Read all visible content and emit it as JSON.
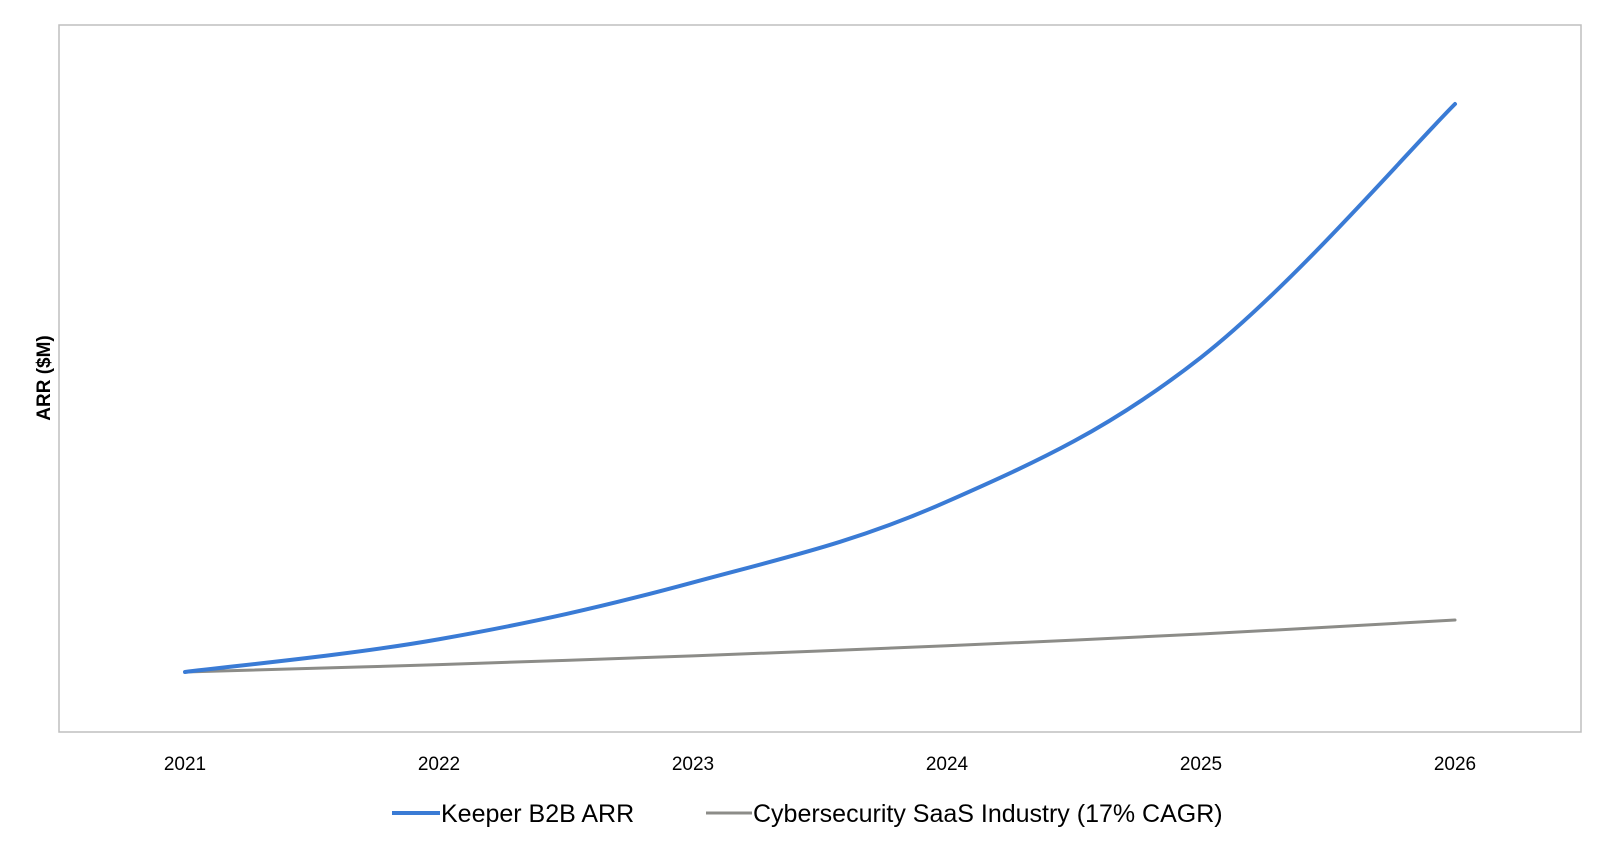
{
  "chart_data": {
    "type": "line",
    "title": "",
    "xlabel": "",
    "ylabel": "ARR ($M)",
    "x": [
      "2021",
      "2022",
      "2023",
      "2024",
      "2025",
      "2026"
    ],
    "y_ticks_shown": false,
    "grid": false,
    "legend_position": "bottom",
    "series": [
      {
        "name": "Keeper B2B ARR",
        "color": "#3a7bd5",
        "relative_values": [
          1.0,
          1.75,
          3.05,
          4.9,
          8.2,
          14.0
        ]
      },
      {
        "name": "Cybersecurity SaaS Industry (17% CAGR)",
        "color": "#8c8c88",
        "relative_values": [
          1.0,
          1.17,
          1.37,
          1.6,
          1.87,
          2.19
        ]
      }
    ]
  }
}
